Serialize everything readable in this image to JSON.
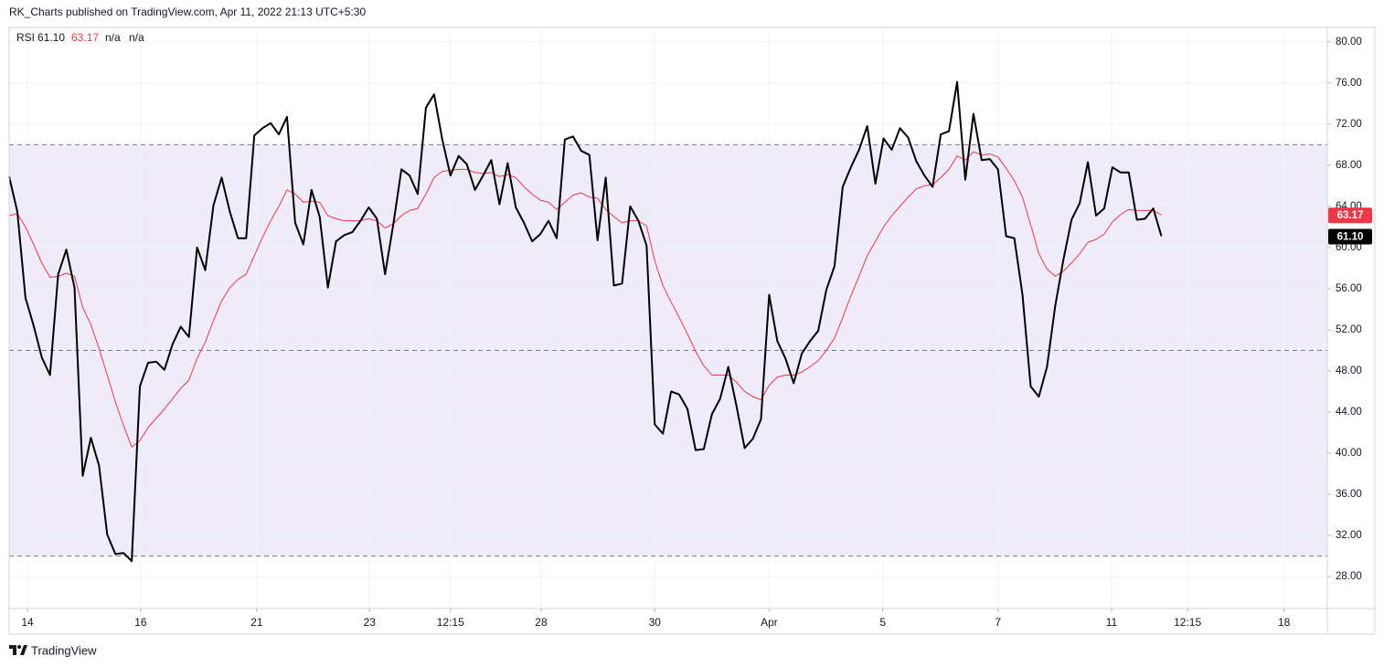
{
  "header": "RK_Charts published on TradingView.com, Apr 11, 2022 21:13 UTC+5:30",
  "footer": "TradingView",
  "chart_data": {
    "type": "line",
    "indicator": {
      "readouts": [
        "61.10",
        "63.17",
        "n/a",
        "n/a"
      ]
    },
    "series": [
      {
        "name": "RSI",
        "color": "#000000",
        "width": 2,
        "values": [
          66.9,
          63.5,
          55.1,
          52.4,
          49.3,
          47.6,
          57.4,
          59.8,
          56.1,
          37.8,
          41.5,
          38.8,
          32.1,
          30.2,
          30.3,
          29.5,
          46.5,
          48.8,
          48.9,
          48.1,
          50.6,
          52.3,
          51.3,
          60.0,
          57.8,
          64.1,
          66.8,
          63.5,
          60.9,
          60.9,
          70.9,
          71.6,
          72.1,
          71.0,
          72.7,
          62.4,
          60.3,
          65.6,
          63.0,
          56.1,
          60.6,
          61.2,
          61.5,
          62.6,
          63.9,
          62.8,
          57.4,
          62.2,
          67.6,
          67.0,
          65.2,
          73.6,
          74.9,
          70.5,
          67.0,
          68.9,
          68.1,
          65.6,
          67.0,
          68.5,
          64.2,
          68.2,
          63.9,
          62.4,
          60.6,
          61.3,
          62.6,
          60.9,
          70.5,
          70.8,
          69.4,
          69.0,
          60.7,
          66.8,
          56.3,
          56.5,
          64.0,
          62.6,
          60.2,
          42.8,
          41.9,
          46.0,
          45.7,
          44.3,
          40.3,
          40.4,
          43.8,
          45.3,
          48.4,
          44.6,
          40.5,
          41.4,
          43.3,
          55.4,
          50.9,
          49.2,
          46.8,
          49.7,
          50.9,
          51.9,
          55.9,
          58.2,
          65.9,
          67.8,
          69.5,
          71.8,
          66.2,
          70.6,
          69.5,
          71.6,
          70.7,
          68.4,
          67.0,
          65.9,
          71.0,
          71.3,
          76.1,
          66.6,
          73.0,
          68.5,
          68.6,
          67.6,
          61.1,
          60.9,
          55.4,
          46.5,
          45.5,
          48.4,
          54.3,
          58.8,
          62.7,
          64.3,
          68.3,
          63.1,
          63.8,
          67.8,
          67.3,
          67.3,
          62.7,
          62.8,
          63.8,
          61.1
        ]
      },
      {
        "color": "#f23645",
        "width": 1,
        "values": [
          63.1,
          63.3,
          62.0,
          60.3,
          58.5,
          57.1,
          57.2,
          57.5,
          57.2,
          54.2,
          52.5,
          50.2,
          47.6,
          45.0,
          42.7,
          40.6,
          41.2,
          42.5,
          43.4,
          44.3,
          45.3,
          46.3,
          47.1,
          49.2,
          50.8,
          52.9,
          54.8,
          56.1,
          56.9,
          57.4,
          59.2,
          61.0,
          62.6,
          64.0,
          65.6,
          65.2,
          64.4,
          64.5,
          64.4,
          63.1,
          62.8,
          62.6,
          62.6,
          62.6,
          62.8,
          62.6,
          61.9,
          62.3,
          63.1,
          63.6,
          63.8,
          65.2,
          66.8,
          67.4,
          67.5,
          67.6,
          67.6,
          67.3,
          67.2,
          67.3,
          66.9,
          67.1,
          66.8,
          65.9,
          65.2,
          64.6,
          64.4,
          63.7,
          64.4,
          65.1,
          65.3,
          64.9,
          64.8,
          63.7,
          63.0,
          62.4,
          62.6,
          62.6,
          62.1,
          58.7,
          56.3,
          54.7,
          53.2,
          51.6,
          49.9,
          48.5,
          47.6,
          47.6,
          47.6,
          46.9,
          46.0,
          45.5,
          45.2,
          46.6,
          47.4,
          47.6,
          47.6,
          47.9,
          48.4,
          49.0,
          50.0,
          51.2,
          53.2,
          55.3,
          57.2,
          59.2,
          60.6,
          62.0,
          63.1,
          64.0,
          64.9,
          65.7,
          66.0,
          66.1,
          66.8,
          67.6,
          68.9,
          68.5,
          69.3,
          69.0,
          69.1,
          68.8,
          67.7,
          66.5,
          64.9,
          62.2,
          59.4,
          57.9,
          57.2,
          57.7,
          58.5,
          59.4,
          60.5,
          60.8,
          61.3,
          62.5,
          63.2,
          63.7,
          63.6,
          63.6,
          63.6,
          63.17
        ]
      }
    ],
    "bands": {
      "upper": 70,
      "middle": 50,
      "lower": 30,
      "color": "#efebf8"
    },
    "xlim": [
      0,
      161.3
    ],
    "xticks": [
      {
        "value": 2.24,
        "label": "14"
      },
      {
        "value": 16.1,
        "label": "16"
      },
      {
        "value": 30.3,
        "label": "21"
      },
      {
        "value": 44.1,
        "label": "23"
      },
      {
        "value": 54.0,
        "label": "12:15"
      },
      {
        "value": 65.1,
        "label": "28"
      },
      {
        "value": 79.0,
        "label": "30"
      },
      {
        "value": 93.0,
        "label": "Apr"
      },
      {
        "value": 106.9,
        "label": "5"
      },
      {
        "value": 121.0,
        "label": "7"
      },
      {
        "value": 134.9,
        "label": "11"
      },
      {
        "value": 144.2,
        "label": "12:15"
      },
      {
        "value": 156.0,
        "label": "18"
      }
    ],
    "ylim": [
      24.9,
      81.4
    ],
    "yticks": [
      {
        "value": 28,
        "label": "28.00"
      },
      {
        "value": 32,
        "label": "32.00"
      },
      {
        "value": 36,
        "label": "36.00"
      },
      {
        "value": 40,
        "label": "40.00"
      },
      {
        "value": 44,
        "label": "44.00"
      },
      {
        "value": 48,
        "label": "48.00"
      },
      {
        "value": 52,
        "label": "52.00"
      },
      {
        "value": 56,
        "label": "56.00"
      },
      {
        "value": 60,
        "label": "60.00"
      },
      {
        "value": 64,
        "label": "64.00"
      },
      {
        "value": 68,
        "label": "68.00"
      },
      {
        "value": 72,
        "label": "72.00"
      },
      {
        "value": 76,
        "label": "76.00"
      },
      {
        "value": 80,
        "label": "80.00"
      }
    ],
    "grid": true
  }
}
